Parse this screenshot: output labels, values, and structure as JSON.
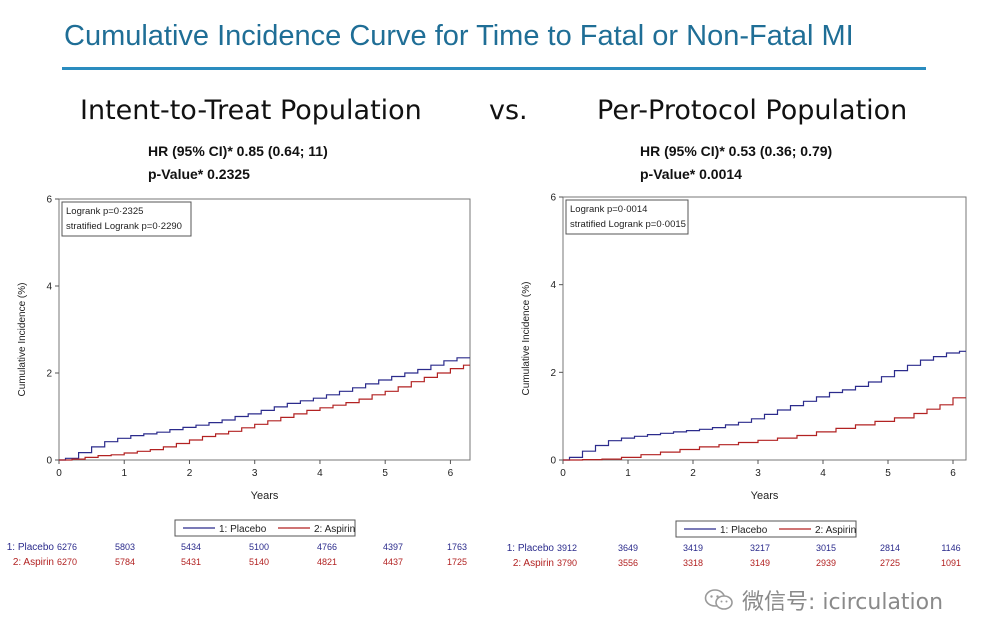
{
  "slide_title": "Cumulative Incidence Curve for Time to Fatal or Non-Fatal MI",
  "population_left": "Intent-to-Treat Population",
  "vs_label": "vs.",
  "population_right": "Per-Protocol Population",
  "stats_left": {
    "hr": "HR (95% CI)*  0.85 (0.64; 11)",
    "p": "p-Value*  0.2325"
  },
  "stats_right": {
    "hr": "HR (95% CI)*  0.53 (0.36; 0.79)",
    "p": "p-Value*  0.0014"
  },
  "watermark": {
    "text": "微信号: icirculation",
    "icon": "wechat-logo-icon"
  },
  "colors": {
    "title": "#1f6e96",
    "rule": "#2a8cbf",
    "placebo": "#2b2b8c",
    "aspirin": "#b22222"
  },
  "chart_data": [
    {
      "type": "line",
      "panel": "Intent-to-Treat Population",
      "xlabel": "Years",
      "ylabel": "Cumulative Incidence (%)",
      "xlim": [
        0,
        6.3
      ],
      "ylim": [
        0,
        6
      ],
      "xticks": [
        0,
        1,
        2,
        3,
        4,
        5,
        6
      ],
      "yticks": [
        0,
        2,
        4,
        6
      ],
      "grid": false,
      "annotation": [
        "Logrank p=0·2325",
        "stratified Logrank p=0·2290"
      ],
      "legend": {
        "placement": "bottom",
        "entries": [
          "1: Placebo",
          "2: Aspirin"
        ]
      },
      "series": [
        {
          "name": "1: Placebo",
          "color": "#2b2b8c",
          "x": [
            0,
            0.1,
            0.3,
            0.5,
            0.7,
            0.9,
            1.1,
            1.3,
            1.5,
            1.7,
            1.9,
            2.1,
            2.3,
            2.5,
            2.7,
            2.9,
            3.1,
            3.3,
            3.5,
            3.7,
            3.9,
            4.1,
            4.3,
            4.5,
            4.7,
            4.9,
            5.1,
            5.3,
            5.5,
            5.7,
            5.9,
            6.1,
            6.3
          ],
          "y": [
            0,
            0.04,
            0.17,
            0.3,
            0.42,
            0.5,
            0.56,
            0.6,
            0.64,
            0.7,
            0.75,
            0.8,
            0.86,
            0.92,
            1.0,
            1.06,
            1.14,
            1.22,
            1.3,
            1.36,
            1.42,
            1.5,
            1.58,
            1.66,
            1.75,
            1.84,
            1.92,
            2.0,
            2.08,
            2.18,
            2.28,
            2.35,
            2.35
          ]
        },
        {
          "name": "2: Aspirin",
          "color": "#b22222",
          "x": [
            0,
            0.2,
            0.4,
            0.6,
            0.8,
            1.0,
            1.2,
            1.4,
            1.6,
            1.8,
            2.0,
            2.2,
            2.4,
            2.6,
            2.8,
            3.0,
            3.2,
            3.4,
            3.6,
            3.8,
            4.0,
            4.2,
            4.4,
            4.6,
            4.8,
            5.0,
            5.2,
            5.4,
            5.6,
            5.8,
            6.0,
            6.2,
            6.3
          ],
          "y": [
            0,
            0.02,
            0.06,
            0.1,
            0.12,
            0.16,
            0.2,
            0.24,
            0.3,
            0.38,
            0.46,
            0.54,
            0.6,
            0.66,
            0.74,
            0.82,
            0.9,
            0.98,
            1.06,
            1.14,
            1.2,
            1.26,
            1.32,
            1.4,
            1.5,
            1.58,
            1.68,
            1.8,
            1.9,
            2.0,
            2.1,
            2.18,
            2.18
          ]
        }
      ],
      "risk_table": {
        "rows": [
          {
            "label": "1: Placebo",
            "color": "#2b2b8c",
            "values": [
              "6276",
              "5803",
              "5434",
              "5100",
              "4766",
              "4397",
              "1763"
            ]
          },
          {
            "label": "2: Aspirin",
            "color": "#b22222",
            "values": [
              "6270",
              "5784",
              "5431",
              "5140",
              "4821",
              "4437",
              "1725"
            ]
          }
        ]
      }
    },
    {
      "type": "line",
      "panel": "Per-Protocol Population",
      "xlabel": "Years",
      "ylabel": "Cumulative Incidence (%)",
      "xlim": [
        0,
        6.2
      ],
      "ylim": [
        0,
        6
      ],
      "xticks": [
        0,
        1,
        2,
        3,
        4,
        5,
        6
      ],
      "yticks": [
        0,
        2,
        4,
        6
      ],
      "grid": false,
      "annotation": [
        "Logrank p=0·0014",
        "stratified Logrank p=0·0015"
      ],
      "legend": {
        "placement": "bottom",
        "entries": [
          "1: Placebo",
          "2: Aspirin"
        ]
      },
      "series": [
        {
          "name": "1: Placebo",
          "color": "#2b2b8c",
          "x": [
            0,
            0.1,
            0.3,
            0.5,
            0.7,
            0.9,
            1.1,
            1.3,
            1.5,
            1.7,
            1.9,
            2.1,
            2.3,
            2.5,
            2.7,
            2.9,
            3.1,
            3.3,
            3.5,
            3.7,
            3.9,
            4.1,
            4.3,
            4.5,
            4.7,
            4.9,
            5.1,
            5.3,
            5.5,
            5.7,
            5.9,
            6.1,
            6.2
          ],
          "y": [
            0,
            0.06,
            0.2,
            0.33,
            0.44,
            0.5,
            0.54,
            0.58,
            0.61,
            0.64,
            0.67,
            0.7,
            0.74,
            0.8,
            0.86,
            0.94,
            1.04,
            1.14,
            1.24,
            1.34,
            1.44,
            1.54,
            1.6,
            1.68,
            1.78,
            1.9,
            2.04,
            2.16,
            2.28,
            2.36,
            2.44,
            2.48,
            2.48
          ]
        },
        {
          "name": "2: Aspirin",
          "color": "#b22222",
          "x": [
            0,
            0.3,
            0.6,
            0.9,
            1.2,
            1.5,
            1.8,
            2.1,
            2.4,
            2.7,
            3.0,
            3.3,
            3.6,
            3.9,
            4.2,
            4.5,
            4.8,
            5.1,
            5.4,
            5.6,
            5.8,
            6.0,
            6.2
          ],
          "y": [
            0,
            0.01,
            0.02,
            0.06,
            0.12,
            0.18,
            0.24,
            0.3,
            0.35,
            0.4,
            0.45,
            0.5,
            0.56,
            0.64,
            0.72,
            0.8,
            0.88,
            0.96,
            1.06,
            1.16,
            1.26,
            1.42,
            1.42
          ]
        }
      ],
      "risk_table": {
        "rows": [
          {
            "label": "1: Placebo",
            "color": "#2b2b8c",
            "values": [
              "3912",
              "3649",
              "3419",
              "3217",
              "3015",
              "2814",
              "1146"
            ]
          },
          {
            "label": "2: Aspirin",
            "color": "#b22222",
            "values": [
              "3790",
              "3556",
              "3318",
              "3149",
              "2939",
              "2725",
              "1091"
            ]
          }
        ]
      }
    }
  ]
}
